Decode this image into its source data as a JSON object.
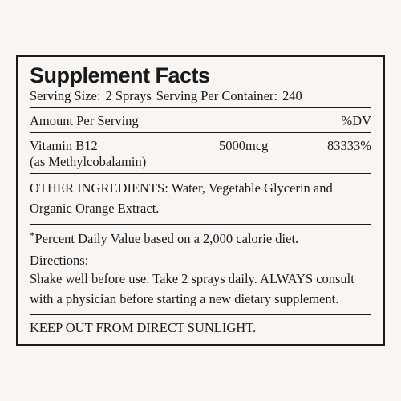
{
  "title": "Supplement Facts",
  "serving": {
    "size_label": "Serving Size:",
    "size_value": "2 Sprays",
    "per_container_label": "Serving Per Container:",
    "per_container_value": "240"
  },
  "header": {
    "amount": "Amount Per Serving",
    "dv": "%DV"
  },
  "ingredient": {
    "name": "Vitamin B12",
    "amount": "5000mcg",
    "dv": "83333%",
    "sub": "(as Methylcobalamin)"
  },
  "other_ingredients": {
    "label": "OTHER INGREDIENTS:",
    "text": "Water, Vegetable Glycerin and Organic Orange Extract."
  },
  "dv_note": {
    "asterisk": "*",
    "text": "Percent Daily Value based on a 2,000 calorie diet."
  },
  "directions": {
    "label": "Directions:",
    "body": "Shake well before use. Take 2 sprays daily. ALWAYS consult with a physician before starting a new dietary supplement."
  },
  "keepout": "KEEP OUT FROM DIRECT SUNLIGHT."
}
